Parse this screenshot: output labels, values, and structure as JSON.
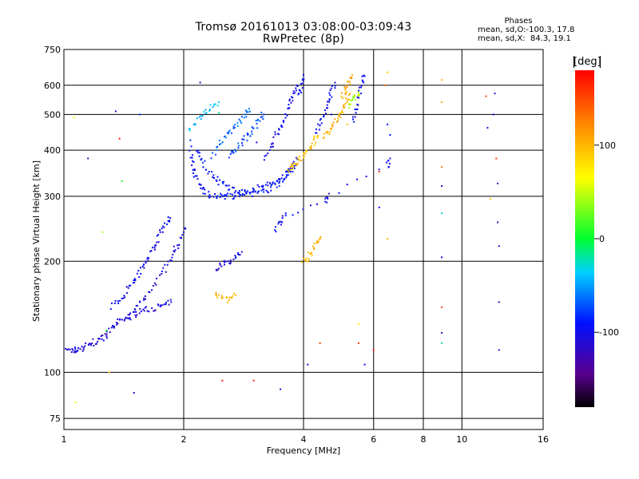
{
  "chart_data": {
    "type": "scatter",
    "title": "Tromsø 20161013 03:08:00-03:09:43",
    "subtitle": "RwPretec (8p)",
    "xlabel": "Frequency [MHz]",
    "ylabel": "Stationary phase Virtual Height [km]",
    "x_scale": "log",
    "y_scale": "log",
    "xlim": [
      1,
      16
    ],
    "ylim": [
      70,
      750
    ],
    "x_ticks": [
      1,
      2,
      4,
      6,
      8,
      10,
      16
    ],
    "x_tick_labels": [
      "1",
      "2",
      "4",
      "6",
      "8",
      "10",
      "16"
    ],
    "y_ticks": [
      75,
      100,
      200,
      300,
      400,
      500,
      600,
      750
    ],
    "y_tick_labels": [
      "75",
      "100",
      "200",
      "300",
      "400",
      "500",
      "600",
      "750"
    ],
    "grid": true,
    "stats": {
      "title": "Phases",
      "o_line": "mean, sd,O:-100.3, 17.8",
      "x_line": "mean, sd,X:  84.3, 19.1"
    },
    "colorbar": {
      "label": "[deg]",
      "ticks": [
        -100,
        0,
        100
      ],
      "tick_labels": [
        "-100",
        "0",
        "100"
      ],
      "range": [
        -180,
        180
      ],
      "colormap": "rainbow (black-purple-blue-cyan-green-yellow-orange-red)"
    },
    "traces": [
      {
        "name": "",
        "phase_deg": -110,
        "points": [
          [
            1.02,
            114
          ],
          [
            1.05,
            115
          ],
          [
            1.08,
            115
          ],
          [
            1.12,
            117
          ],
          [
            1.16,
            119
          ],
          [
            1.2,
            121
          ],
          [
            1.24,
            123
          ],
          [
            1.28,
            126
          ],
          [
            1.32,
            131
          ],
          [
            1.36,
            136
          ],
          [
            1.42,
            140
          ],
          [
            1.48,
            143
          ],
          [
            1.55,
            146
          ],
          [
            1.62,
            148
          ],
          [
            1.7,
            150
          ],
          [
            1.78,
            152
          ],
          [
            1.86,
            155
          ]
        ]
      },
      {
        "name": "",
        "phase_deg": -100,
        "points": [
          [
            1.32,
            150
          ],
          [
            1.38,
            158
          ],
          [
            1.44,
            168
          ],
          [
            1.5,
            178
          ],
          [
            1.55,
            188
          ],
          [
            1.6,
            198
          ],
          [
            1.65,
            210
          ],
          [
            1.7,
            222
          ],
          [
            1.75,
            236
          ],
          [
            1.8,
            250
          ],
          [
            1.85,
            262
          ]
        ]
      },
      {
        "name": "",
        "phase_deg": -105,
        "points": [
          [
            1.45,
            140
          ],
          [
            1.52,
            150
          ],
          [
            1.6,
            160
          ],
          [
            1.68,
            172
          ],
          [
            1.76,
            186
          ],
          [
            1.84,
            200
          ],
          [
            1.9,
            214
          ],
          [
            1.96,
            228
          ],
          [
            2.02,
            245
          ]
        ]
      },
      {
        "name": "",
        "phase_deg": -95,
        "points": [
          [
            2.08,
            420
          ],
          [
            2.1,
            370
          ],
          [
            2.13,
            345
          ],
          [
            2.18,
            325
          ],
          [
            2.24,
            312
          ],
          [
            2.32,
            304
          ],
          [
            2.42,
            300
          ],
          [
            2.52,
            299
          ],
          [
            2.62,
            300
          ],
          [
            2.74,
            303
          ],
          [
            2.86,
            308
          ],
          [
            3.0,
            314
          ],
          [
            3.14,
            318
          ],
          [
            3.28,
            322
          ],
          [
            3.42,
            330
          ],
          [
            3.56,
            342
          ],
          [
            3.68,
            356
          ],
          [
            3.78,
            372
          ]
        ]
      },
      {
        "name": "",
        "phase_deg": -90,
        "points": [
          [
            2.16,
            400
          ],
          [
            2.22,
            375
          ],
          [
            2.3,
            352
          ],
          [
            2.4,
            336
          ],
          [
            2.5,
            324
          ],
          [
            2.62,
            315
          ],
          [
            2.76,
            308
          ],
          [
            2.9,
            305
          ],
          [
            3.05,
            306
          ],
          [
            3.2,
            310
          ],
          [
            3.36,
            318
          ],
          [
            3.5,
            328
          ],
          [
            3.64,
            342
          ],
          [
            3.76,
            358
          ],
          [
            3.86,
            378
          ]
        ]
      },
      {
        "name": "",
        "phase_deg": -65,
        "points": [
          [
            2.35,
            385
          ],
          [
            2.45,
            412
          ],
          [
            2.55,
            435
          ],
          [
            2.65,
            458
          ],
          [
            2.75,
            478
          ],
          [
            2.85,
            500
          ],
          [
            2.92,
            518
          ]
        ]
      },
      {
        "name": "",
        "phase_deg": -75,
        "points": [
          [
            2.6,
            385
          ],
          [
            2.7,
            402
          ],
          [
            2.8,
            420
          ],
          [
            2.9,
            440
          ],
          [
            3.0,
            460
          ],
          [
            3.1,
            480
          ],
          [
            3.18,
            500
          ]
        ]
      },
      {
        "name": "",
        "phase_deg": -40,
        "points": [
          [
            2.05,
            450
          ],
          [
            2.15,
            480
          ],
          [
            2.25,
            505
          ],
          [
            2.35,
            525
          ],
          [
            2.45,
            540
          ]
        ]
      },
      {
        "name": "",
        "phase_deg": -100,
        "points": [
          [
            3.2,
            380
          ],
          [
            3.3,
            405
          ],
          [
            3.4,
            435
          ],
          [
            3.5,
            465
          ],
          [
            3.6,
            500
          ],
          [
            3.7,
            535
          ],
          [
            3.78,
            565
          ],
          [
            3.85,
            600
          ]
        ]
      },
      {
        "name": "",
        "phase_deg": -100,
        "points": [
          [
            3.9,
            560
          ],
          [
            3.95,
            600
          ],
          [
            4.0,
            640
          ]
        ]
      },
      {
        "name": "",
        "phase_deg": -100,
        "points": [
          [
            4.3,
            440
          ],
          [
            4.4,
            470
          ],
          [
            4.5,
            505
          ],
          [
            4.6,
            540
          ],
          [
            4.7,
            575
          ],
          [
            4.8,
            610
          ]
        ]
      },
      {
        "name": "",
        "phase_deg": -100,
        "points": [
          [
            5.3,
            480
          ],
          [
            5.4,
            520
          ],
          [
            5.5,
            560
          ],
          [
            5.6,
            600
          ],
          [
            5.7,
            635
          ]
        ]
      },
      {
        "name": "",
        "phase_deg": 95,
        "points": [
          [
            3.65,
            355
          ],
          [
            3.75,
            362
          ],
          [
            3.85,
            370
          ],
          [
            3.95,
            380
          ],
          [
            4.05,
            392
          ],
          [
            4.15,
            405
          ],
          [
            4.25,
            420
          ],
          [
            4.35,
            438
          ]
        ]
      },
      {
        "name": "",
        "phase_deg": 105,
        "points": [
          [
            4.5,
            430
          ],
          [
            4.62,
            450
          ],
          [
            4.75,
            470
          ],
          [
            4.88,
            492
          ],
          [
            5.0,
            515
          ],
          [
            5.1,
            540
          ],
          [
            5.2,
            565
          ]
        ]
      },
      {
        "name": "",
        "phase_deg": 110,
        "points": [
          [
            5.0,
            560
          ],
          [
            5.1,
            585
          ],
          [
            5.2,
            610
          ],
          [
            5.3,
            640
          ]
        ]
      },
      {
        "name": "",
        "phase_deg": 40,
        "points": [
          [
            5.2,
            520
          ],
          [
            5.3,
            545
          ],
          [
            5.4,
            560
          ],
          [
            5.5,
            575
          ]
        ]
      },
      {
        "name": "",
        "phase_deg": -110,
        "points": [
          [
            2.4,
            190
          ],
          [
            2.5,
            196
          ],
          [
            2.6,
            200
          ],
          [
            2.7,
            206
          ],
          [
            2.8,
            212
          ]
        ]
      },
      {
        "name": "",
        "phase_deg": 100,
        "points": [
          [
            2.4,
            165
          ],
          [
            2.5,
            160
          ],
          [
            2.6,
            158
          ],
          [
            2.7,
            162
          ]
        ]
      },
      {
        "name": "",
        "phase_deg": 100,
        "points": [
          [
            4.0,
            198
          ],
          [
            4.1,
            205
          ],
          [
            4.2,
            212
          ],
          [
            4.3,
            222
          ],
          [
            4.4,
            230
          ]
        ]
      },
      {
        "name": "",
        "phase_deg": -100,
        "points": [
          [
            3.4,
            245
          ],
          [
            3.5,
            255
          ],
          [
            3.6,
            265
          ],
          [
            4.5,
            290
          ],
          [
            4.6,
            300
          ],
          [
            6.5,
            360
          ],
          [
            6.6,
            380
          ]
        ]
      }
    ],
    "isolated_points": [
      [
        1.06,
        490,
        60
      ],
      [
        1.35,
        510,
        -110
      ],
      [
        1.38,
        430,
        170
      ],
      [
        1.55,
        500,
        -80
      ],
      [
        2.2,
        610,
        -120
      ],
      [
        2.45,
        505,
        -20
      ],
      [
        1.25,
        240,
        40
      ],
      [
        1.15,
        380,
        -120
      ],
      [
        1.4,
        330,
        10
      ],
      [
        2.5,
        95,
        170
      ],
      [
        3.0,
        95,
        165
      ],
      [
        3.5,
        90,
        -120
      ],
      [
        4.1,
        105,
        -110
      ],
      [
        5.7,
        105,
        -100
      ],
      [
        4.4,
        120,
        150
      ],
      [
        5.5,
        120,
        160
      ],
      [
        6.0,
        115,
        170
      ],
      [
        5.5,
        135,
        70
      ],
      [
        6.5,
        650,
        90
      ],
      [
        6.4,
        600,
        140
      ],
      [
        8.9,
        620,
        100
      ],
      [
        8.9,
        540,
        110
      ],
      [
        8.9,
        360,
        130
      ],
      [
        8.9,
        320,
        -110
      ],
      [
        8.9,
        270,
        -30
      ],
      [
        8.9,
        205,
        -100
      ],
      [
        8.9,
        150,
        150
      ],
      [
        8.9,
        128,
        -120
      ],
      [
        8.9,
        120,
        -20
      ],
      [
        12.1,
        570,
        -120
      ],
      [
        12.2,
        380,
        160
      ],
      [
        12.3,
        325,
        -120
      ],
      [
        12.3,
        255,
        -120
      ],
      [
        12.4,
        220,
        -100
      ],
      [
        12.4,
        155,
        -120
      ],
      [
        12.4,
        115,
        -100
      ],
      [
        11.5,
        560,
        150
      ],
      [
        11.6,
        460,
        -100
      ],
      [
        12.0,
        500,
        -110
      ],
      [
        11.8,
        295,
        90
      ],
      [
        1.07,
        83,
        60
      ],
      [
        1.5,
        88,
        -110
      ],
      [
        1.3,
        100,
        90
      ],
      [
        1.28,
        130,
        0
      ],
      [
        6.2,
        280,
        -100
      ],
      [
        6.5,
        230,
        100
      ],
      [
        4.7,
        500,
        -100
      ],
      [
        3.05,
        420,
        -100
      ],
      [
        5.15,
        470,
        100
      ],
      [
        6.2,
        350,
        150
      ],
      [
        6.5,
        470,
        -90
      ],
      [
        6.6,
        440,
        -90
      ]
    ]
  }
}
